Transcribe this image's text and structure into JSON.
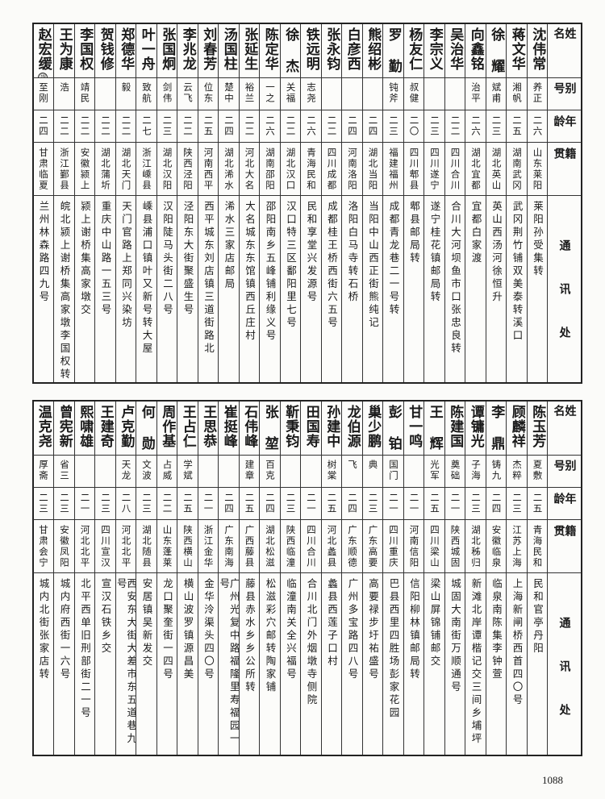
{
  "headers": {
    "name": "姓名",
    "alias": "别号",
    "age": "年龄",
    "hometown": "籍贯",
    "address": "通讯处"
  },
  "top": {
    "rows": [
      {
        "name": "沈伟常",
        "alias": "养正",
        "age": "二六",
        "hometown": "山东莱阳",
        "address": "莱阳孙受集转"
      },
      {
        "name": "蒋文华",
        "alias": "湘帆",
        "age": "二五",
        "hometown": "湖南武冈",
        "address": "武冈荆竹铺双美泰转溪口"
      },
      {
        "name": "徐耀",
        "alias": "斌甫",
        "age": "二三",
        "hometown": "湖北英山",
        "address": "英山西汤河徐恒升"
      },
      {
        "name": "向鑫铭",
        "alias": "治平",
        "age": "二六",
        "hometown": "湖北宜都",
        "address": "宜都白家渡"
      },
      {
        "name": "吴治华",
        "alias": "",
        "age": "二二",
        "hometown": "四川合川",
        "address": "合川大河坝鱼市口张忠良转"
      },
      {
        "name": "李宗义",
        "alias": "",
        "age": "二三",
        "hometown": "四川遂宁",
        "address": "遂宁桂花镇邮局转"
      },
      {
        "name": "杨友仁",
        "alias": "叔健",
        "age": "二〇",
        "hometown": "四川郫县",
        "address": "郫县邮局转"
      },
      {
        "name": "罗勤",
        "alias": "钝斧",
        "age": "二三",
        "hometown": "福建福州",
        "address": "成都青龙巷二一号转"
      },
      {
        "name": "熊绍彬",
        "alias": "",
        "age": "二四",
        "hometown": "湖北当阳",
        "address": "当阳中山西正街熊纯记"
      },
      {
        "name": "白彦西",
        "alias": "",
        "age": "二四",
        "hometown": "河南洛阳",
        "address": "洛阳白马寺转石桥"
      },
      {
        "name": "张永钧",
        "alias": "",
        "age": "二二",
        "hometown": "四川成都",
        "address": "成都桂王桥西街六五号"
      },
      {
        "name": "铁远明",
        "alias": "志尧",
        "age": "二六",
        "hometown": "青海民和",
        "address": "民和享堂兴发源号"
      },
      {
        "name": "徐杰",
        "alias": "关福",
        "age": "二二",
        "hometown": "湖北汉口",
        "address": "汉口特三区鄱阳里七号"
      },
      {
        "name": "陈定华",
        "alias": "一之",
        "age": "二六",
        "hometown": "湖南邵阳",
        "address": "邵阳南乡五峰铺利缘义号"
      },
      {
        "name": "张延生",
        "alias": "裕兰",
        "age": "二二",
        "hometown": "河北大名",
        "address": "大名城东东馆镇西丘庄村"
      },
      {
        "name": "汤国柱",
        "alias": "楚中",
        "age": "二四",
        "hometown": "湖北浠水",
        "address": "浠水三家店邮局"
      },
      {
        "name": "刘春芳",
        "alias": "位东",
        "age": "二五",
        "hometown": "河南西平",
        "address": "西平城东刘店镇三道街路北"
      },
      {
        "name": "李兆龙",
        "alias": "云飞",
        "age": "二二",
        "hometown": "陕西泾阳",
        "address": "泾阳东大街聚盛生号"
      },
      {
        "name": "张国炯",
        "alias": "剑伟",
        "age": "二三",
        "hometown": "湖北汉阳",
        "address": "汉阳陡马头街二八号"
      },
      {
        "name": "叶一舟",
        "alias": "致航",
        "age": "二七",
        "hometown": "浙江嵊县",
        "address": "嵊县浦口镇叶又新号转大屋"
      },
      {
        "name": "郑德华",
        "alias": "毅",
        "age": "二二",
        "hometown": "湖北天门",
        "address": "天门官路上郑同兴染坊"
      },
      {
        "name": "贺钱修",
        "alias": "",
        "age": "二二",
        "hometown": "湖北蒲圻",
        "address": "重庆中山路一五三号"
      },
      {
        "name": "李国权",
        "alias": "靖民",
        "age": "二二",
        "hometown": "安徽颍上",
        "address": "颍上谢桥集高家墩交"
      },
      {
        "name": "王为康",
        "alias": "浩",
        "age": "二二",
        "hometown": "浙江鄞县",
        "address": "皖北颍上谢桥集高家墩李国权转"
      },
      {
        "name": "赵宏缓",
        "note": "⑲",
        "alias": "至刚",
        "age": "二四",
        "hometown": "甘肃临夏",
        "address": "兰州林森路四九号"
      }
    ]
  },
  "bottom": {
    "rows": [
      {
        "name": "陈玉芳",
        "alias": "夏敷",
        "age": "二五",
        "hometown": "青海民和",
        "address": "民和官亭丹阳"
      },
      {
        "name": "顾麟祥",
        "alias": "杰粹",
        "age": "二三",
        "hometown": "江苏上海",
        "address": "上海新闸桥西首四〇号"
      },
      {
        "name": "李鼎",
        "alias": "铸九",
        "age": "二四",
        "hometown": "安徽临泉",
        "address": "临泉南陈集李钟萱"
      },
      {
        "name": "谭镛光",
        "alias": "子海",
        "age": "二三",
        "hometown": "湖北秭归",
        "address": "新滩北岸谭楷记交三间乡埔坪"
      },
      {
        "name": "陈建国",
        "alias": "奠础",
        "age": "二一",
        "hometown": "陕西城固",
        "address": "城固大南街万顺通号"
      },
      {
        "name": "王辉",
        "alias": "光军",
        "age": "二五",
        "hometown": "四川梁山",
        "address": "梁山屏锦铺邮交"
      },
      {
        "name": "甘一鸣",
        "alias": "",
        "age": "二一",
        "hometown": "河南信阳",
        "address": "信阳柳林镇邮局转"
      },
      {
        "name": "彭铂",
        "alias": "国门",
        "age": "二一",
        "hometown": "四川重庆",
        "address": "巴县西里四胜场彭家花园"
      },
      {
        "name": "巢少鹏",
        "alias": "典",
        "age": "二三",
        "hometown": "广东高要",
        "address": "高要禄步圩祐盛号"
      },
      {
        "name": "龙伯源",
        "alias": "飞",
        "age": "二四",
        "hometown": "广东顺德",
        "address": "广州多宝路四八号"
      },
      {
        "name": "孙建中",
        "alias": "树棠",
        "age": "二五",
        "hometown": "河北蠡县",
        "address": "蠡县西莲子口村"
      },
      {
        "name": "田国寿",
        "alias": "",
        "age": "二一",
        "hometown": "四川合川",
        "address": "合川北门外烟墩寺侧院"
      },
      {
        "name": "靳秉钧",
        "alias": "",
        "age": "二三",
        "hometown": "陕西临潼",
        "address": "临潼南关全兴福号"
      },
      {
        "name": "张堃",
        "alias": "百克",
        "age": "二四",
        "hometown": "湖北松滋",
        "address": "松滋彩穴邮转陶家铺"
      },
      {
        "name": "石伟峰",
        "alias": "建章",
        "age": "二五",
        "hometown": "广西藤县",
        "address": "藤县赤水乡乡公所转"
      },
      {
        "name": "崔挺峰",
        "alias": "",
        "age": "二四",
        "hometown": "广东南海",
        "address": "广州光复中路福隆里寿福园一号"
      },
      {
        "name": "王思恭",
        "alias": "",
        "age": "二一",
        "hometown": "浙江金华",
        "address": "金华泠渠头四〇号"
      },
      {
        "name": "王占仁",
        "alias": "学斌",
        "age": "二五",
        "hometown": "陕西横山",
        "address": "横山波罗镇源昌美"
      },
      {
        "name": "周作基",
        "alias": "占威",
        "age": "二二",
        "hometown": "山东蓬莱",
        "address": "龙口聚奎街一四号"
      },
      {
        "name": "何勋",
        "alias": "文波",
        "age": "二三",
        "hometown": "湖北随县",
        "address": "安居镇吴新发交"
      },
      {
        "name": "卢克勤",
        "alias": "天龙",
        "age": "二八",
        "hometown": "河北北平",
        "address": "西安东大街大差市东五道巷九号"
      },
      {
        "name": "王建奇",
        "alias": "",
        "age": "二三",
        "hometown": "四川宣汉",
        "address": "宣汉石铁乡交"
      },
      {
        "name": "熙啸雄",
        "alias": "",
        "age": "二一",
        "hometown": "河北北平",
        "address": "北平西单旧刑部街二一号"
      },
      {
        "name": "曾宪新",
        "alias": "省三",
        "age": "二三",
        "hometown": "安徽凤阳",
        "address": "城内府西街一六号"
      },
      {
        "name": "温克尧",
        "alias": "厚斋",
        "age": "二三",
        "hometown": "甘肃会宁",
        "address": "城内北街张家店转"
      }
    ]
  },
  "page_number": "1088"
}
